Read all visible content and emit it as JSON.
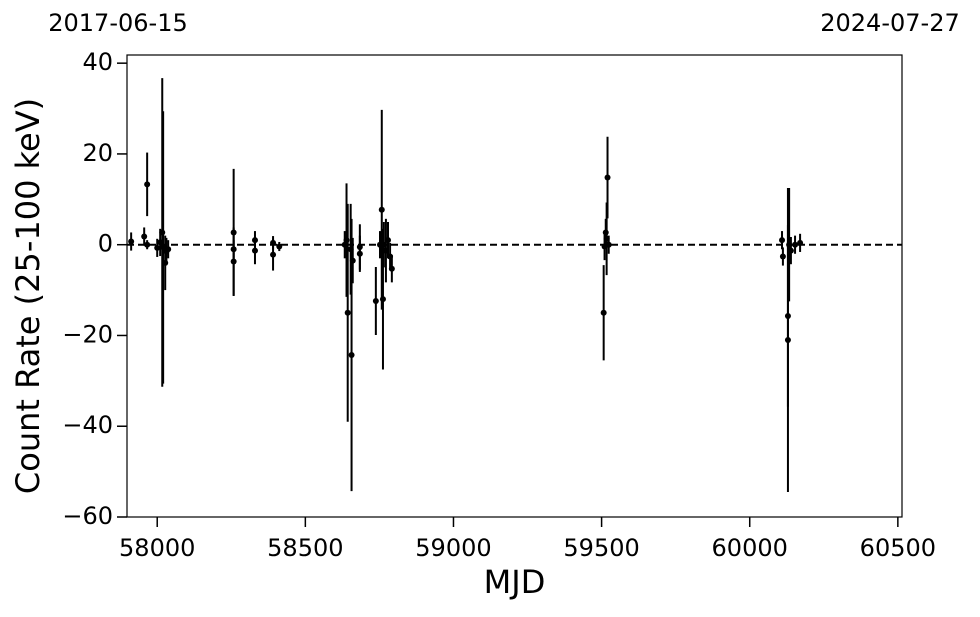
{
  "chart_data": {
    "type": "scatter",
    "annotations": [
      "2017-06-15",
      "2024-07-27"
    ],
    "xlabel": "MJD",
    "ylabel": "Count Rate (25-100 keV)",
    "xlim": [
      57898,
      60514
    ],
    "ylim": [
      -60,
      41.8
    ],
    "xticks": [
      58000,
      58500,
      59000,
      59500,
      60000,
      60500
    ],
    "yticks": [
      {
        "value": -60,
        "label": "−60"
      },
      {
        "value": -40,
        "label": "−40"
      },
      {
        "value": -20,
        "label": "−20"
      },
      0,
      20,
      40
    ],
    "hline": 0,
    "series": [
      {
        "color": "#000000",
        "x": [
          57912,
          57956,
          57966,
          57966,
          58000,
          58010,
          58017,
          58020,
          58027,
          58031,
          58037,
          58258,
          58258,
          58258,
          58330,
          58330,
          58391,
          58391,
          58412,
          58633,
          58639,
          58643,
          58653,
          58656,
          58660,
          58684,
          58684,
          58738,
          58752,
          58758,
          58762,
          58765,
          58772,
          58779,
          58786,
          58792,
          59507,
          59510,
          59514,
          59517,
          59520,
          59524,
          60109,
          60112,
          60129,
          60129,
          60133,
          60139,
          60153,
          60170
        ],
        "values": [
          0.7,
          1.8,
          13.3,
          0,
          -0.7,
          0.5,
          2.7,
          -0.6,
          -4,
          -1.5,
          -1,
          -1,
          2.7,
          -3.7,
          -1.3,
          1,
          -2.2,
          0.4,
          -0.4,
          0,
          1,
          -15,
          -1,
          -24.3,
          -3.5,
          -0.5,
          -2,
          -12.4,
          0,
          7.7,
          -12,
          0,
          -1.3,
          1,
          -2.6,
          -5.3,
          -15,
          -0.4,
          2.7,
          1.3,
          14.8,
          0,
          1,
          -2.6,
          -15.7,
          -21,
          0,
          -1.3,
          0,
          0.4
        ],
        "errors": [
          2,
          2,
          7,
          1,
          2,
          3,
          34,
          30,
          6,
          3,
          2,
          2,
          14,
          7.5,
          3,
          2,
          3.5,
          1.5,
          1,
          3,
          12.5,
          24,
          10,
          30,
          5,
          5,
          4,
          7.5,
          3,
          22,
          15.5,
          5,
          7,
          4,
          3,
          3,
          10.5,
          3,
          3,
          8,
          9,
          2,
          2,
          2,
          20,
          33.5,
          12.5,
          3,
          2,
          2
        ]
      }
    ]
  }
}
